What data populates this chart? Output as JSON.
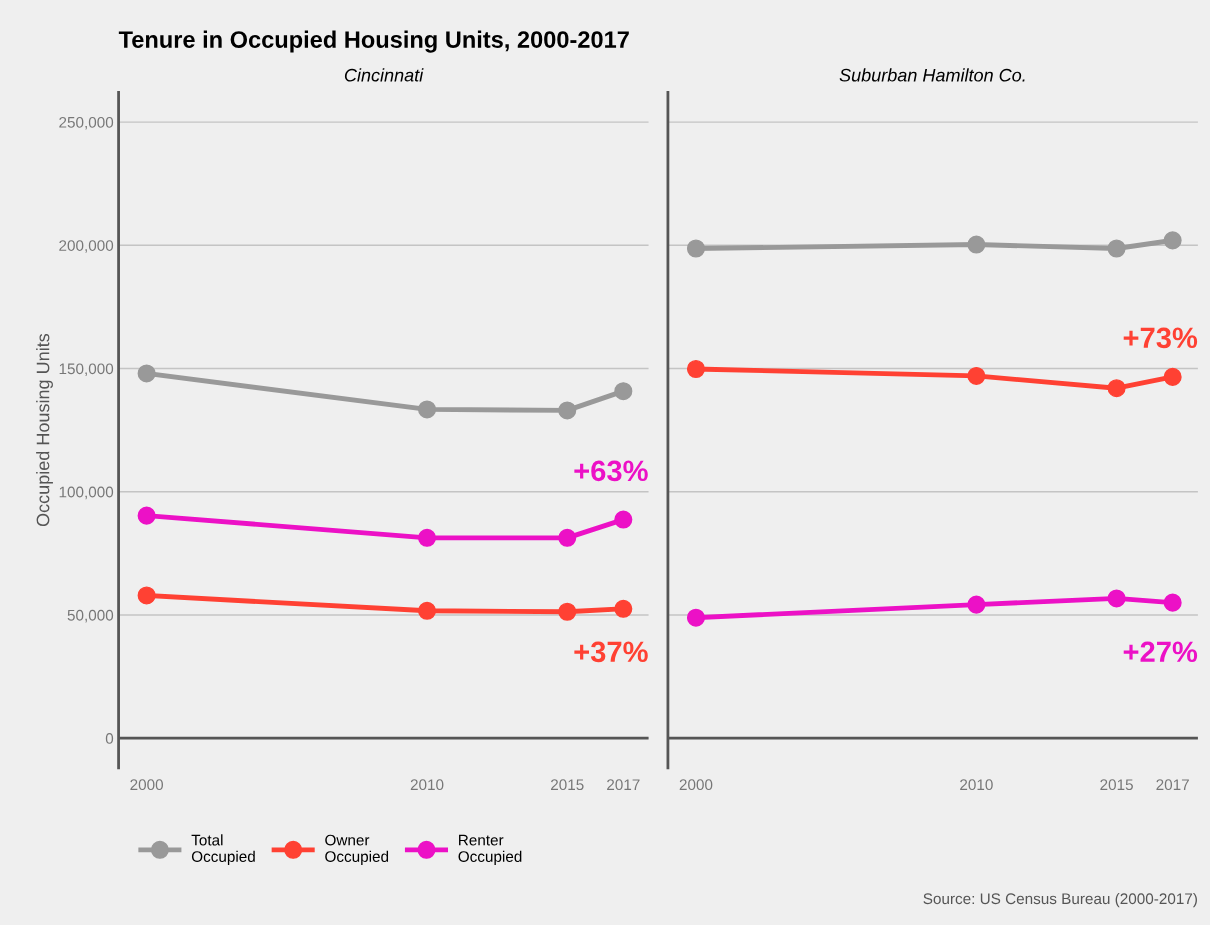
{
  "chart_data": [
    {
      "type": "line",
      "title": "Tenure in Occupied Housing Units, 2000-2017",
      "subtitle": "Cincinnati",
      "ylabel": "Occupied Housing Units",
      "x": [
        2000,
        2010,
        2015,
        2017
      ],
      "xlim": [
        1999,
        2017.9
      ],
      "xticks": [
        2000,
        2010,
        2015,
        2017
      ],
      "ylim": [
        -12000,
        262000
      ],
      "yticks": [
        {
          "value": 0,
          "label": "0"
        },
        {
          "value": 50000,
          "label": "50,000"
        },
        {
          "value": 100000,
          "label": "100,000"
        },
        {
          "value": 150000,
          "label": "150,000"
        },
        {
          "value": 200000,
          "label": "200,000"
        },
        {
          "value": 250000,
          "label": "250,000"
        }
      ],
      "grid": "y",
      "legend": "bottom",
      "marker": "circle",
      "line_style": "solid",
      "ref_lines": [
        {
          "axis": "y",
          "value": 0,
          "color": "#555555"
        }
      ],
      "series": [
        {
          "name": "Total\nOccupied",
          "color": "#999999",
          "values": [
            148000,
            133400,
            133000,
            140800
          ]
        },
        {
          "name": "Owner\nOccupied",
          "color": "#ff4133",
          "values": [
            57900,
            51700,
            51300,
            52500
          ]
        },
        {
          "name": "Renter\nOccupied",
          "color": "#ec11c6",
          "values": [
            90300,
            81300,
            81300,
            88700
          ]
        }
      ],
      "annotations": [
        "+63%",
        "+37%"
      ]
    },
    {
      "type": "line",
      "subtitle": "Suburban Hamilton Co.",
      "tick_labels": "x",
      "x": [
        2000,
        2010,
        2015,
        2017
      ],
      "xlim": [
        1999,
        2017.9
      ],
      "xticks": [
        2000,
        2010,
        2015,
        2017
      ],
      "ylim": [
        -12000,
        262000
      ],
      "yticks": [
        0,
        50000,
        100000,
        150000,
        200000,
        250000
      ],
      "grid": "y",
      "marker": "circle",
      "line_style": "solid",
      "ref_lines": [
        {
          "axis": "y",
          "value": 0,
          "color": "#555555"
        }
      ],
      "series": [
        {
          "color": "#999999",
          "values": [
            198700,
            200300,
            198700,
            202000
          ]
        },
        {
          "color": "#ff4133",
          "values": [
            149800,
            147000,
            142000,
            146600
          ]
        },
        {
          "color": "#ec11c6",
          "values": [
            48900,
            54200,
            56700,
            55000
          ]
        }
      ],
      "annotations": [
        "+73%",
        "+27%",
        "Source: US Census Bureau (2000-2017)"
      ]
    }
  ]
}
